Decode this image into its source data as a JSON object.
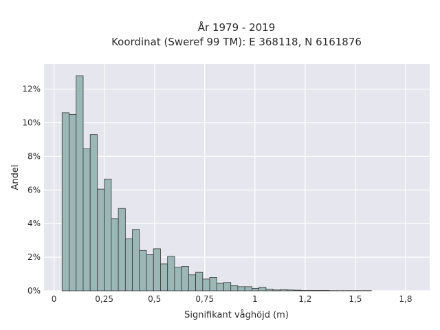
{
  "chart_data": {
    "type": "bar",
    "title": "År 1979 - 2019",
    "subtitle": "Koordinat (Sweref 99 TM): E 368118, N 6161876",
    "xlabel": "Signifikant våghöjd (m)",
    "ylabel": "Andel",
    "xlim": [
      -0.05,
      1.87
    ],
    "ylim": [
      0,
      13.5
    ],
    "x_ticks": [
      {
        "value": 0,
        "label": "0"
      },
      {
        "value": 0.25,
        "label": "0,25"
      },
      {
        "value": 0.5,
        "label": "0,5"
      },
      {
        "value": 0.75,
        "label": "0,75"
      },
      {
        "value": 1,
        "label": "1"
      },
      {
        "value": 1.25,
        "label": "1,2"
      },
      {
        "value": 1.5,
        "label": "1,5"
      },
      {
        "value": 1.75,
        "label": "1,8"
      }
    ],
    "y_ticks": [
      {
        "value": 0,
        "label": "0%"
      },
      {
        "value": 2,
        "label": "2%"
      },
      {
        "value": 4,
        "label": "4%"
      },
      {
        "value": 6,
        "label": "6%"
      },
      {
        "value": 8,
        "label": "8%"
      },
      {
        "value": 10,
        "label": "10%"
      },
      {
        "value": 12,
        "label": "12%"
      }
    ],
    "grid": true,
    "bin_start": 0.04,
    "bin_width": 0.035,
    "values": [
      10.6,
      10.5,
      12.8,
      8.45,
      9.3,
      6.05,
      6.65,
      4.3,
      4.9,
      3.1,
      3.65,
      2.4,
      2.15,
      2.5,
      1.6,
      2.05,
      1.4,
      1.45,
      0.95,
      1.1,
      0.7,
      0.8,
      0.45,
      0.5,
      0.3,
      0.25,
      0.25,
      0.15,
      0.2,
      0.1,
      0.05,
      0.07,
      0.05,
      0.04,
      0.02,
      0.02,
      0.02,
      0.02,
      0.01,
      0.01,
      0.01,
      0.01,
      0.01,
      0.01
    ],
    "colors": {
      "plot_bg": "#e6e6ee",
      "bar_fill": "#9cb8b6",
      "bar_stroke": "#333333",
      "grid": "#ffffff"
    }
  }
}
